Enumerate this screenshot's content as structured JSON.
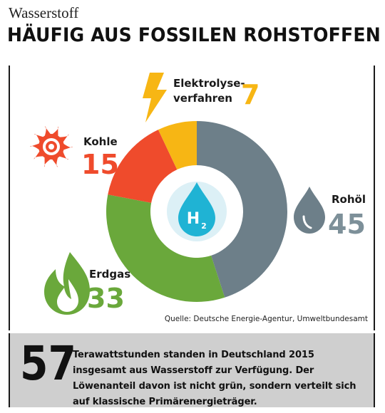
{
  "kicker": "Wasserstoff",
  "headline": "HÄUFIG AUS FOSSILEN ROHSTOFFEN",
  "chart_data": {
    "type": "pie",
    "variant": "donut",
    "title": "HÄUFIG AUS FOSSILEN ROHSTOFFEN",
    "center_label": "H",
    "center_sub": "2",
    "slices": [
      {
        "label": "Rohöl",
        "value": 45,
        "color": "#6d7f89"
      },
      {
        "label": "Erdgas",
        "value": 33,
        "color": "#6aa83b"
      },
      {
        "label": "Kohle",
        "value": 15,
        "color": "#ef4b2c"
      },
      {
        "label": "Elektrolyse-verfahren",
        "value": 7,
        "color": "#f7b614"
      }
    ],
    "label_lines": {
      "rohoel": [
        "Rohöl"
      ],
      "erdgas": [
        "Erdgas"
      ],
      "kohle": [
        "Kohle"
      ],
      "elektrolyse": [
        "Elektrolyse-",
        "verfahren"
      ]
    },
    "icons": {
      "rohoel": "oil-drop-icon",
      "erdgas": "flame-icon",
      "kohle": "sun-icon",
      "elektrolyse": "lightning-icon",
      "center": "hydrogen-drop-icon"
    },
    "colors": {
      "rohoel_value": "#7d9099",
      "center_drop": "#1fb3d4",
      "center_bg": "#dcf0f6"
    }
  },
  "source": "Quelle: Deutsche Energie-Agentur, Umweltbundesamt",
  "footer": {
    "number": "57",
    "text": "Terawattstunden standen in Deutschland 2015 insgesamt aus Wasserstoff zur Verfügung. Der Löwenanteil davon ist nicht grün, sondern verteilt sich auf klassische Primärenergieträger."
  }
}
